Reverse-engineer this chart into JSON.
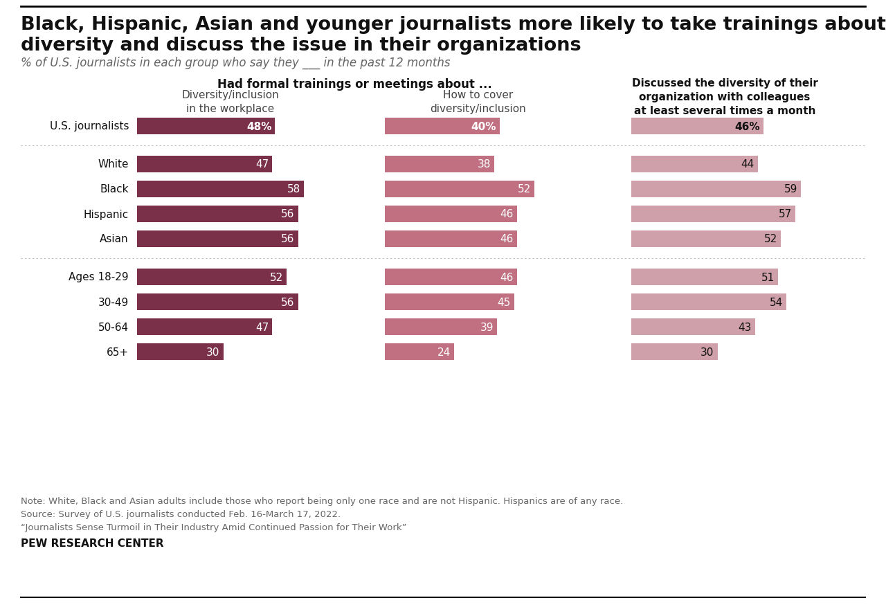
{
  "title_line1": "Black, Hispanic, Asian and younger journalists more likely to take trainings about",
  "title_line2": "diversity and discuss the issue in their organizations",
  "subtitle": "% of U.S. journalists in each group who say they ___ in the past 12 months",
  "col_headers": {
    "group1_title": "Had formal trainings or meetings about ...",
    "col1": "Diversity/inclusion\nin the workplace",
    "col2": "How to cover\ndiversity/inclusion",
    "col3": "Discussed the diversity of their\norganization with colleagues\nat least several times a month"
  },
  "rows": [
    {
      "label": "U.S. journalists",
      "v1": 48,
      "v2": 40,
      "v3": 46,
      "is_total": true
    },
    {
      "label": "White",
      "v1": 47,
      "v2": 38,
      "v3": 44,
      "is_total": false
    },
    {
      "label": "Black",
      "v1": 58,
      "v2": 52,
      "v3": 59,
      "is_total": false
    },
    {
      "label": "Hispanic",
      "v1": 56,
      "v2": 46,
      "v3": 57,
      "is_total": false
    },
    {
      "label": "Asian",
      "v1": 56,
      "v2": 46,
      "v3": 52,
      "is_total": false
    },
    {
      "label": "Ages 18-29",
      "v1": 52,
      "v2": 46,
      "v3": 51,
      "is_total": false
    },
    {
      "label": "30-49",
      "v1": 56,
      "v2": 45,
      "v3": 54,
      "is_total": false
    },
    {
      "label": "50-64",
      "v1": 47,
      "v2": 39,
      "v3": 43,
      "is_total": false
    },
    {
      "label": "65+",
      "v1": 30,
      "v2": 24,
      "v3": 30,
      "is_total": false
    }
  ],
  "colors": {
    "bar_dark": "#7B3049",
    "bar_mid": "#C07080",
    "bar_light": "#CFA0AA",
    "text_white": "#FFFFFF",
    "text_dark": "#111111",
    "note_color": "#666666",
    "background": "#FFFFFF",
    "dotted_line": "#BBBBBB"
  },
  "note_lines": [
    "Note: White, Black and Asian adults include those who report being only one race and are not Hispanic. Hispanics are of any race.",
    "Source: Survey of U.S. journalists conducted Feb. 16-March 17, 2022.",
    "“Journalists Sense Turmoil in Their Industry Amid Continued Passion for Their Work”"
  ],
  "pew_label": "PEW RESEARCH CENTER",
  "max_val": 65
}
